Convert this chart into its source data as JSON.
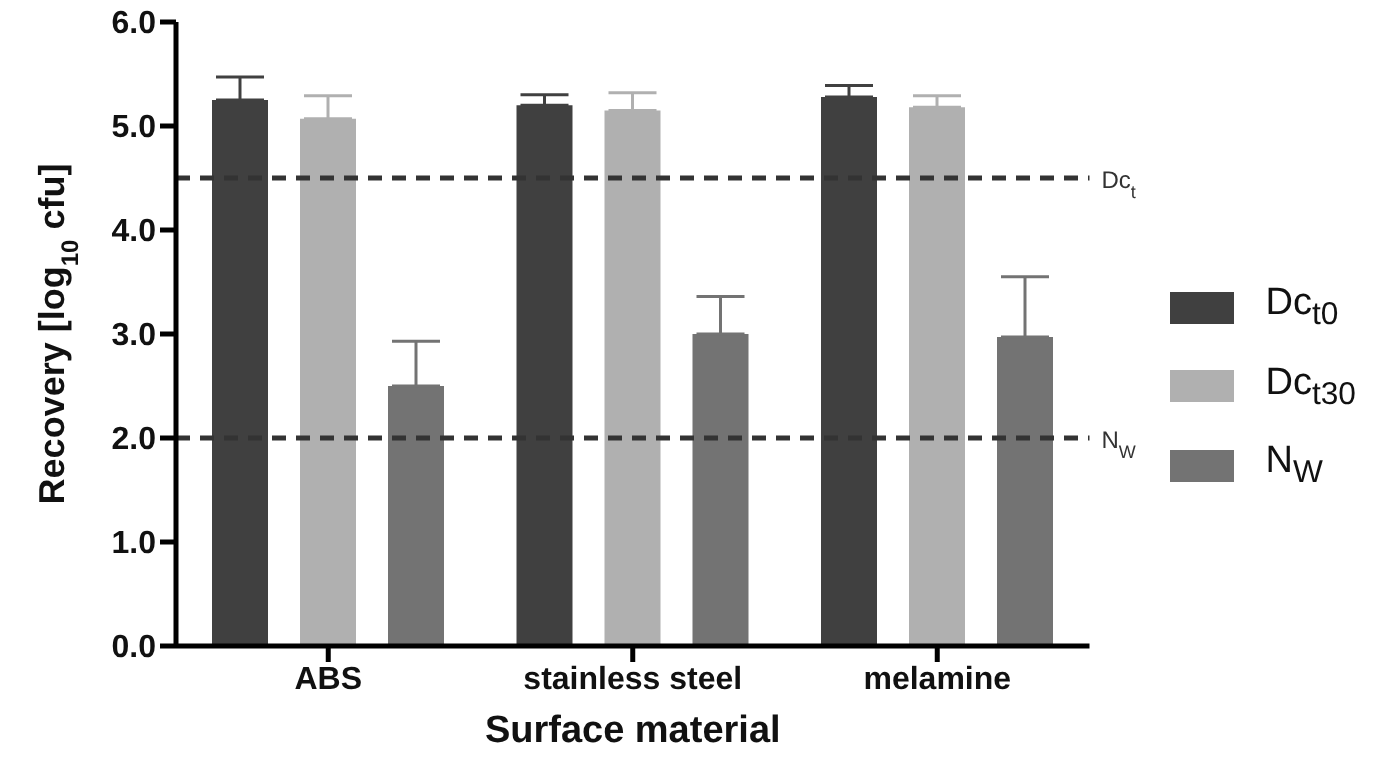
{
  "chart_data": {
    "type": "bar",
    "xlabel": "Surface material",
    "ylabel": "Recovery [log$_{10}$ cfu]",
    "categories": [
      "ABS",
      "stainless steel",
      "melamine"
    ],
    "series": [
      {
        "name": "Dc$_{t0}$",
        "color": "#404040",
        "values": [
          5.25,
          5.2,
          5.28
        ],
        "errors": [
          [
            5.25,
            5.47
          ],
          [
            5.2,
            5.3
          ],
          [
            5.28,
            5.39
          ]
        ]
      },
      {
        "name": "Dc$_{t30}$",
        "color": "#b0b0b0",
        "values": [
          5.07,
          5.15,
          5.18
        ],
        "errors": [
          [
            5.07,
            5.29
          ],
          [
            5.15,
            5.32
          ],
          [
            5.18,
            5.29
          ]
        ]
      },
      {
        "name": "N$_{W}$",
        "color": "#737373",
        "values": [
          2.5,
          3.0,
          2.97
        ],
        "errors": [
          [
            2.5,
            2.93
          ],
          [
            3.0,
            3.36
          ],
          [
            2.97,
            3.55
          ]
        ]
      }
    ],
    "ylim": [
      0,
      6
    ],
    "yticks": [
      {
        "value": 0,
        "label": "0.0"
      },
      {
        "value": 1,
        "label": "1.0"
      },
      {
        "value": 2,
        "label": "2.0"
      },
      {
        "value": 3,
        "label": "3.0"
      },
      {
        "value": 4,
        "label": "4.0"
      },
      {
        "value": 5,
        "label": "5.0"
      },
      {
        "value": 6,
        "label": "6.0"
      }
    ],
    "ref_lines": [
      {
        "axis": "y",
        "value": 4.5,
        "label": "Dc$_{t}$",
        "color": "#333333",
        "line_style": "dashed"
      },
      {
        "axis": "y",
        "value": 2.0,
        "label": "N$_{W}$",
        "color": "#333333",
        "line_style": "dashed"
      }
    ],
    "grid": false,
    "legend": "right"
  }
}
